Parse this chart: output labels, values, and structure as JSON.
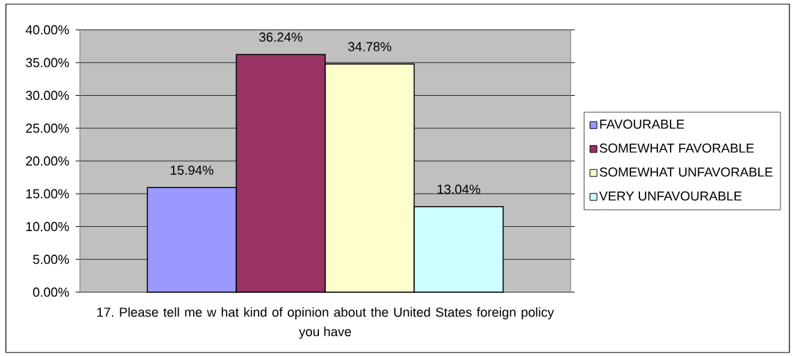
{
  "chart_data": {
    "type": "bar",
    "categories": [
      "17. Please tell me w hat kind of opinion about the United States foreign policy you have"
    ],
    "series": [
      {
        "name": "FAVOURABLE",
        "color": "#9999ff",
        "values": [
          15.94
        ],
        "value_labels": [
          "15.94%"
        ]
      },
      {
        "name": "SOMEWHAT FAVORABLE",
        "color": "#993366",
        "values": [
          36.24
        ],
        "value_labels": [
          "36.24%"
        ]
      },
      {
        "name": "SOMEWHAT UNFAVORABLE",
        "color": "#ffffcc",
        "values": [
          34.78
        ],
        "value_labels": [
          "34.78%"
        ]
      },
      {
        "name": "VERY UNFAVOURABLE",
        "color": "#ccffff",
        "values": [
          13.04
        ],
        "value_labels": [
          "13.04%"
        ]
      }
    ],
    "ylim": [
      0,
      40
    ],
    "yticks": [
      {
        "value": 0,
        "label": "0.00%"
      },
      {
        "value": 5,
        "label": "5.00%"
      },
      {
        "value": 10,
        "label": "10.00%"
      },
      {
        "value": 15,
        "label": "15.00%"
      },
      {
        "value": 20,
        "label": "20.00%"
      },
      {
        "value": 25,
        "label": "25.00%"
      },
      {
        "value": 30,
        "label": "30.00%"
      },
      {
        "value": 35,
        "label": "35.00%"
      },
      {
        "value": 40,
        "label": "40.00%"
      }
    ],
    "grid": "y",
    "legend": "right"
  }
}
